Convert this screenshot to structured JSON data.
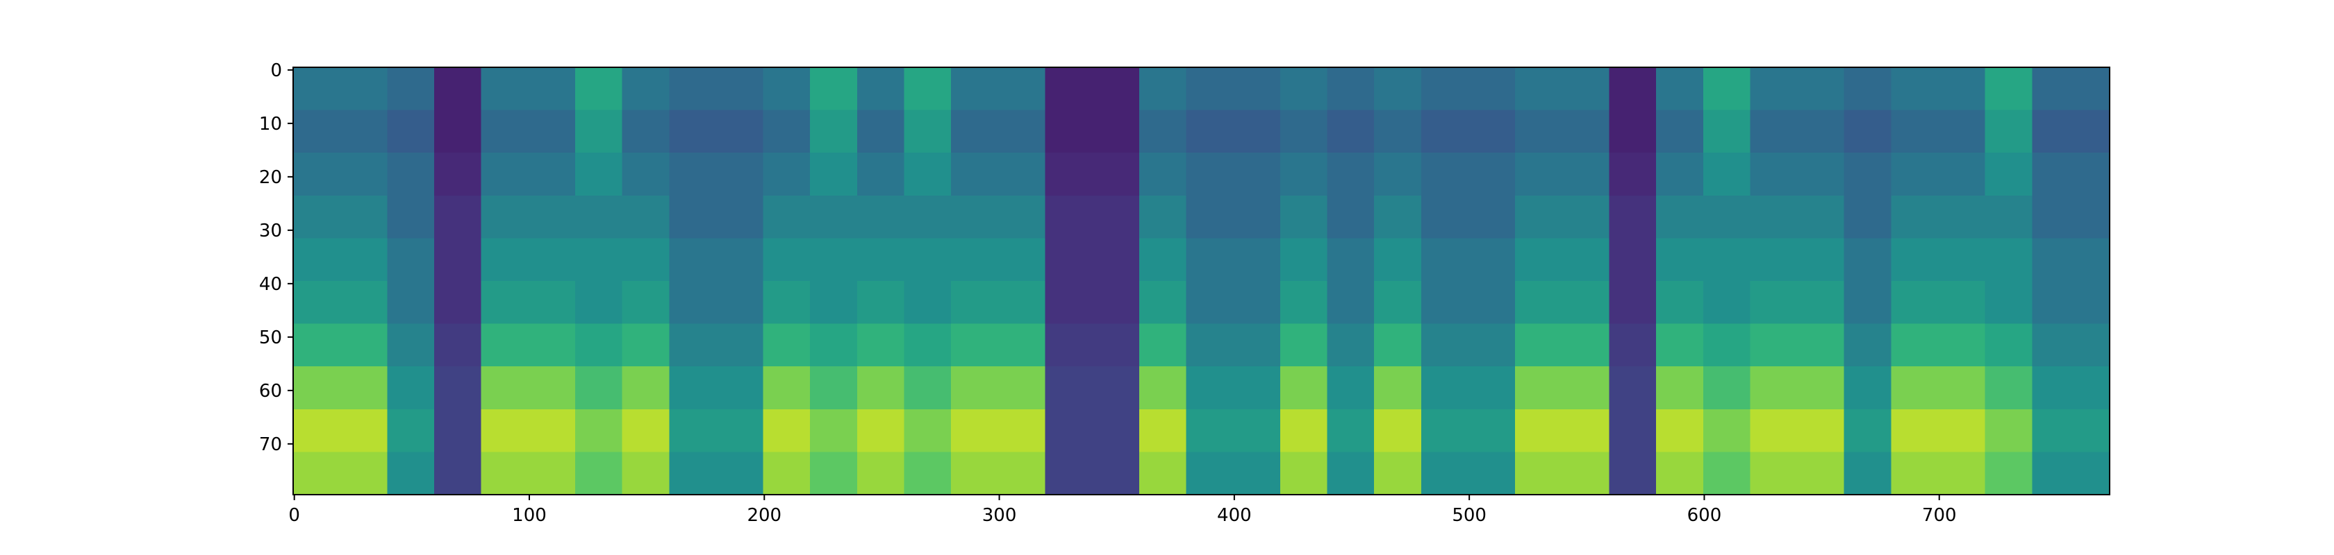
{
  "chart_data": {
    "type": "heatmap",
    "colormap": "viridis",
    "xlim": [
      -0.5,
      772.5
    ],
    "ylim": [
      79.5,
      -0.5
    ],
    "xticks": [
      0,
      100,
      200,
      300,
      400,
      500,
      600,
      700
    ],
    "yticks": [
      0,
      10,
      20,
      30,
      40,
      50,
      60,
      70
    ],
    "xbins": [
      -0.5,
      19.5,
      39.5,
      59.5,
      79.5,
      99.5,
      119.5,
      139.5,
      159.5,
      179.5,
      199.5,
      219.5,
      239.5,
      259.5,
      279.5,
      299.5,
      319.5,
      339.5,
      359.5,
      379.5,
      399.5,
      419.5,
      439.5,
      459.5,
      479.5,
      499.5,
      519.5,
      539.5,
      559.5,
      579.5,
      599.5,
      619.5,
      639.5,
      659.5,
      679.5,
      699.5,
      719.5,
      739.5,
      759.5,
      772.5
    ],
    "ybins": [
      -0.5,
      7.5,
      15.5,
      23.5,
      31.5,
      39.5,
      47.5,
      55.5,
      63.5,
      71.5,
      79.5
    ],
    "z": [
      [
        0.4,
        0.4,
        0.35,
        0.1,
        0.4,
        0.4,
        0.6,
        0.4,
        0.35,
        0.35,
        0.4,
        0.6,
        0.4,
        0.6,
        0.4,
        0.4,
        0.1,
        0.1,
        0.4,
        0.35,
        0.35,
        0.4,
        0.35,
        0.4,
        0.35,
        0.35,
        0.4,
        0.4,
        0.1,
        0.4,
        0.6,
        0.4,
        0.4,
        0.35,
        0.4,
        0.4,
        0.6,
        0.35,
        0.35
      ],
      [
        0.35,
        0.35,
        0.3,
        0.1,
        0.35,
        0.35,
        0.55,
        0.35,
        0.3,
        0.3,
        0.35,
        0.55,
        0.35,
        0.55,
        0.35,
        0.35,
        0.1,
        0.1,
        0.35,
        0.3,
        0.3,
        0.35,
        0.3,
        0.35,
        0.3,
        0.3,
        0.35,
        0.35,
        0.1,
        0.35,
        0.55,
        0.35,
        0.35,
        0.3,
        0.35,
        0.35,
        0.55,
        0.3,
        0.3
      ],
      [
        0.4,
        0.4,
        0.35,
        0.12,
        0.4,
        0.4,
        0.5,
        0.4,
        0.35,
        0.35,
        0.4,
        0.5,
        0.4,
        0.5,
        0.4,
        0.4,
        0.12,
        0.12,
        0.4,
        0.35,
        0.35,
        0.4,
        0.35,
        0.4,
        0.35,
        0.35,
        0.4,
        0.4,
        0.12,
        0.4,
        0.5,
        0.4,
        0.4,
        0.35,
        0.4,
        0.4,
        0.5,
        0.35,
        0.35
      ],
      [
        0.45,
        0.45,
        0.35,
        0.15,
        0.45,
        0.45,
        0.45,
        0.45,
        0.35,
        0.35,
        0.45,
        0.45,
        0.45,
        0.45,
        0.45,
        0.45,
        0.15,
        0.15,
        0.45,
        0.35,
        0.35,
        0.45,
        0.35,
        0.45,
        0.35,
        0.35,
        0.45,
        0.45,
        0.15,
        0.45,
        0.45,
        0.45,
        0.45,
        0.35,
        0.45,
        0.45,
        0.45,
        0.35,
        0.35
      ],
      [
        0.5,
        0.5,
        0.4,
        0.15,
        0.5,
        0.5,
        0.5,
        0.5,
        0.4,
        0.4,
        0.5,
        0.5,
        0.5,
        0.5,
        0.5,
        0.5,
        0.15,
        0.15,
        0.5,
        0.4,
        0.4,
        0.5,
        0.4,
        0.5,
        0.4,
        0.4,
        0.5,
        0.5,
        0.15,
        0.5,
        0.5,
        0.5,
        0.5,
        0.4,
        0.5,
        0.5,
        0.5,
        0.4,
        0.4
      ],
      [
        0.55,
        0.55,
        0.4,
        0.15,
        0.55,
        0.55,
        0.5,
        0.55,
        0.4,
        0.4,
        0.55,
        0.5,
        0.55,
        0.5,
        0.55,
        0.55,
        0.15,
        0.15,
        0.55,
        0.4,
        0.4,
        0.55,
        0.4,
        0.55,
        0.4,
        0.4,
        0.55,
        0.55,
        0.15,
        0.55,
        0.5,
        0.55,
        0.55,
        0.4,
        0.55,
        0.55,
        0.5,
        0.4,
        0.4
      ],
      [
        0.65,
        0.65,
        0.45,
        0.18,
        0.65,
        0.65,
        0.6,
        0.65,
        0.45,
        0.45,
        0.65,
        0.6,
        0.65,
        0.6,
        0.65,
        0.65,
        0.18,
        0.18,
        0.65,
        0.45,
        0.45,
        0.65,
        0.45,
        0.65,
        0.45,
        0.45,
        0.65,
        0.65,
        0.18,
        0.65,
        0.6,
        0.65,
        0.65,
        0.45,
        0.65,
        0.65,
        0.6,
        0.45,
        0.45
      ],
      [
        0.8,
        0.8,
        0.5,
        0.2,
        0.8,
        0.8,
        0.7,
        0.8,
        0.5,
        0.5,
        0.8,
        0.7,
        0.8,
        0.7,
        0.8,
        0.8,
        0.2,
        0.2,
        0.8,
        0.5,
        0.5,
        0.8,
        0.5,
        0.8,
        0.5,
        0.5,
        0.8,
        0.8,
        0.2,
        0.8,
        0.7,
        0.8,
        0.8,
        0.5,
        0.8,
        0.8,
        0.7,
        0.5,
        0.5
      ],
      [
        0.9,
        0.9,
        0.55,
        0.2,
        0.9,
        0.9,
        0.8,
        0.9,
        0.55,
        0.55,
        0.9,
        0.8,
        0.9,
        0.8,
        0.9,
        0.9,
        0.2,
        0.2,
        0.9,
        0.55,
        0.55,
        0.9,
        0.55,
        0.9,
        0.55,
        0.55,
        0.9,
        0.9,
        0.2,
        0.9,
        0.8,
        0.9,
        0.9,
        0.55,
        0.9,
        0.9,
        0.8,
        0.55,
        0.55
      ],
      [
        0.85,
        0.85,
        0.5,
        0.2,
        0.85,
        0.85,
        0.75,
        0.85,
        0.5,
        0.5,
        0.85,
        0.75,
        0.85,
        0.75,
        0.85,
        0.85,
        0.2,
        0.2,
        0.85,
        0.5,
        0.5,
        0.85,
        0.5,
        0.85,
        0.5,
        0.5,
        0.85,
        0.85,
        0.2,
        0.85,
        0.75,
        0.85,
        0.85,
        0.5,
        0.85,
        0.85,
        0.75,
        0.5,
        0.5
      ]
    ]
  }
}
